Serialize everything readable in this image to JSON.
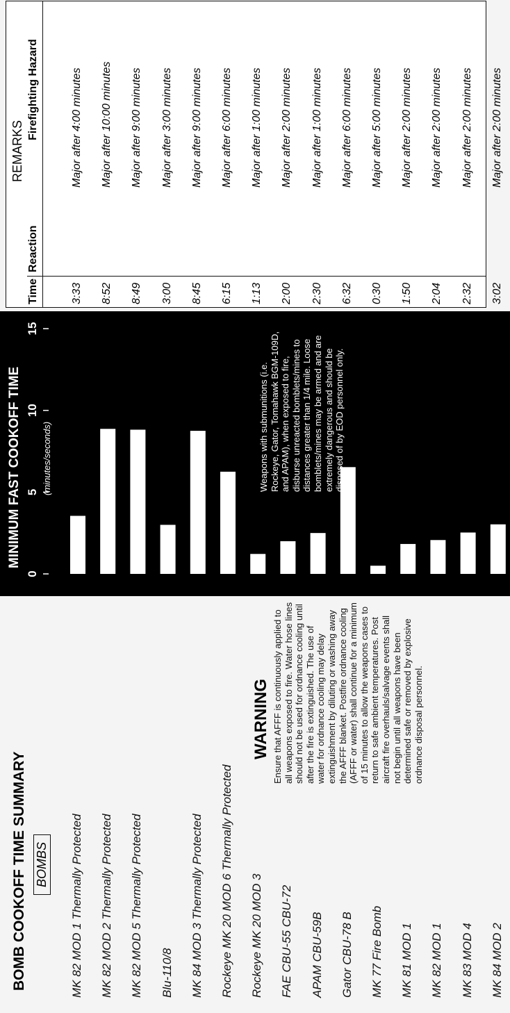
{
  "header": {
    "title": "BOMB COOKOFF TIME SUMMARY",
    "section": "BOMBS"
  },
  "warning": {
    "title": "WARNING",
    "text": "Ensure that AFFF is continuously applied to all weapons exposed to fire. Water hose lines should not be used for ordnance cooling until after the fire is extinguished. The use of water for ordnance cooling may delay extinguishment by diluting or washing away the AFFF blanket. Postfire ordnance cooling (AFFF or water) shall continue for a minimum of 15 minutes to allow the weapons cases to return to safe ambient temperatures. Post aircraft fire overhauls/salvage events shall not begin until all weapons have been determined safe or removed by explosive ordnance disposal personnel."
  },
  "chart_data": {
    "type": "bar",
    "orientation": "horizontal",
    "title": "MINIMUM FAST COOKOFF TIME",
    "subtitle": "(minutes/seconds)",
    "annotation": "Weapons with submunitions (i.e. Rockeye, Gator, Tomahawk BGM-109D, and APAM), when exposed to fire, disburse unreacted bomblets/mines to distances greater than 1/4 mile. Loose bomblets/mines may be armed and are extremely dangerous and should be disposed of by EOD personnel only.",
    "categories": [
      "MK 82 MOD 1 Thermally Protected",
      "MK 82 MOD 2 Thermally Protected",
      "MK 82 MOD 5 Thermally Protected",
      "Blu-110/8",
      "MK 84 MOD 3 Thermally Protected",
      "Rockeye MK 20 MOD 6 Thermally Protected",
      "Rockeye MK 20 MOD 3",
      "FAE CBU-55 CBU-72",
      "APAM CBU-59B",
      "Gator CBU-78 B",
      "MK 77 Fire Bomb",
      "MK 81 MOD 1",
      "MK 82 MOD 1",
      "MK 83 MOD 4",
      "MK 84 MOD 2"
    ],
    "values": [
      3.55,
      8.87,
      8.82,
      3,
      8.75,
      6.25,
      1.22,
      2,
      2.5,
      6.53,
      0.5,
      1.83,
      2.07,
      2.53,
      3.03
    ],
    "color": "#ffffff",
    "background": "#000000",
    "xlim": [
      0,
      15
    ],
    "xticks": [
      0,
      5,
      10,
      15
    ]
  },
  "table": {
    "group_header": "REMARKS",
    "columns": [
      "Time",
      "Reaction",
      "Firefighting Hazard"
    ],
    "rows": [
      {
        "time": "3:33",
        "hazard": "Major after 4:00 minutes"
      },
      {
        "time": "8:52",
        "hazard": "Major after 10:00 minutes"
      },
      {
        "time": "8:49",
        "hazard": "Major after 9:00 minutes"
      },
      {
        "time": "3:00",
        "hazard": "Major after 3:00 minutes"
      },
      {
        "time": "8:45",
        "hazard": "Major after 9:00 minutes"
      },
      {
        "time": "6:15",
        "hazard": "Major after 6:00 minutes"
      },
      {
        "time": "1:13",
        "hazard": "Major after 1:00 minutes"
      },
      {
        "time": "2:00",
        "hazard": "Major after 2:00 minutes"
      },
      {
        "time": "2:30",
        "hazard": "Major after 1:00 minutes"
      },
      {
        "time": "6:32",
        "hazard": "Major after 6:00 minutes"
      },
      {
        "time": "0:30",
        "hazard": "Major after 5:00 minutes"
      },
      {
        "time": "1:50",
        "hazard": "Major after 2:00 minutes"
      },
      {
        "time": "2:04",
        "hazard": "Major after 2:00 minutes"
      },
      {
        "time": "2:32",
        "hazard": "Major after 2:00 minutes"
      },
      {
        "time": "3:02",
        "hazard": "Major after 2:00 minutes"
      }
    ]
  }
}
